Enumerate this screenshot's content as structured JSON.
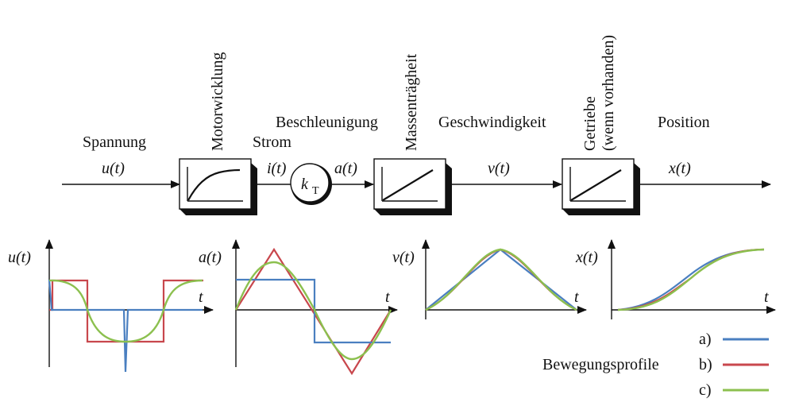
{
  "diagram": {
    "signals": {
      "voltage": {
        "name": "Spannung",
        "symbol": "u(t)"
      },
      "current": {
        "name": "Strom",
        "symbol": "i(t)"
      },
      "acceleration": {
        "name": "Beschleunigung",
        "symbol": "a(t)"
      },
      "velocity": {
        "name": "Geschwindigkeit",
        "symbol": "v(t)"
      },
      "position": {
        "name": "Position",
        "symbol": "x(t)"
      }
    },
    "blocks": {
      "winding": "Motorwicklung",
      "inertia": "Massenträgheit",
      "gear_line1": "Getriebe",
      "gear_line2": "(wenn vorhanden)",
      "torque_constant": "k",
      "torque_constant_sub": "T"
    }
  },
  "plots": {
    "time_label": "t",
    "y_labels": [
      "u(t)",
      "a(t)",
      "v(t)",
      "x(t)"
    ]
  },
  "legend": {
    "title": "Bewegungsprofile",
    "items": [
      {
        "label": "a)",
        "color": "#4a7fc0"
      },
      {
        "label": "b)",
        "color": "#c8474d"
      },
      {
        "label": "c)",
        "color": "#8cc04f"
      }
    ]
  }
}
